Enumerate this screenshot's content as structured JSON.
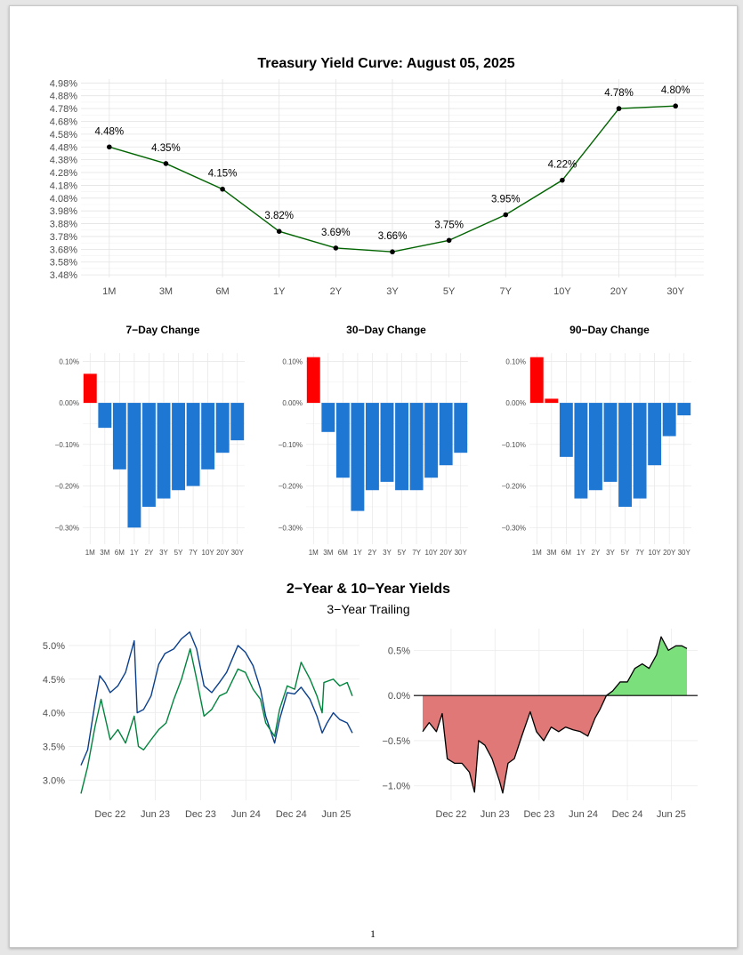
{
  "page": {
    "number": "1"
  },
  "chart_data": [
    {
      "id": "curve",
      "type": "line",
      "title": "Treasury Yield Curve: August 05, 2025",
      "categories": [
        "1M",
        "3M",
        "6M",
        "1Y",
        "2Y",
        "3Y",
        "5Y",
        "7Y",
        "10Y",
        "20Y",
        "30Y"
      ],
      "values": [
        4.48,
        4.35,
        4.15,
        3.82,
        3.69,
        3.66,
        3.75,
        3.95,
        4.22,
        4.78,
        4.8
      ],
      "data_labels": [
        "4.48%",
        "4.35%",
        "4.15%",
        "3.82%",
        "3.69%",
        "3.66%",
        "3.75%",
        "3.95%",
        "4.22%",
        "4.78%",
        "4.80%"
      ],
      "yticks": [
        "3.48%",
        "3.58%",
        "3.68%",
        "3.78%",
        "3.88%",
        "3.98%",
        "4.08%",
        "4.18%",
        "4.28%",
        "4.38%",
        "4.48%",
        "4.58%",
        "4.68%",
        "4.78%",
        "4.88%",
        "4.98%"
      ],
      "ylim": [
        3.46,
        5.01
      ],
      "grid": true,
      "line_color": "#006400",
      "point_color": "#000000"
    },
    {
      "id": "chg7",
      "type": "bar",
      "title": "7−Day Change",
      "categories": [
        "1M",
        "3M",
        "6M",
        "1Y",
        "2Y",
        "3Y",
        "5Y",
        "7Y",
        "10Y",
        "20Y",
        "30Y"
      ],
      "values": [
        0.07,
        -0.06,
        -0.16,
        -0.3,
        -0.25,
        -0.23,
        -0.21,
        -0.2,
        -0.16,
        -0.12,
        -0.09
      ],
      "yticks": [
        "0.10%",
        "0.00%",
        "−0.10%",
        "−0.20%",
        "−0.30%"
      ],
      "ylim": [
        -0.34,
        0.12
      ],
      "pos_color": "#ff0000",
      "neg_color": "#1f77d4"
    },
    {
      "id": "chg30",
      "type": "bar",
      "title": "30−Day Change",
      "categories": [
        "1M",
        "3M",
        "6M",
        "1Y",
        "2Y",
        "3Y",
        "5Y",
        "7Y",
        "10Y",
        "20Y",
        "30Y"
      ],
      "values": [
        0.11,
        -0.07,
        -0.18,
        -0.26,
        -0.21,
        -0.19,
        -0.21,
        -0.21,
        -0.18,
        -0.15,
        -0.12
      ],
      "yticks": [
        "0.10%",
        "0.00%",
        "−0.10%",
        "−0.20%",
        "−0.30%"
      ],
      "ylim": [
        -0.34,
        0.12
      ],
      "pos_color": "#ff0000",
      "neg_color": "#1f77d4"
    },
    {
      "id": "chg90",
      "type": "bar",
      "title": "90−Day Change",
      "categories": [
        "1M",
        "3M",
        "6M",
        "1Y",
        "2Y",
        "3Y",
        "5Y",
        "7Y",
        "10Y",
        "20Y",
        "30Y"
      ],
      "values": [
        0.11,
        0.01,
        -0.13,
        -0.23,
        -0.21,
        -0.19,
        -0.25,
        -0.23,
        -0.15,
        -0.08,
        -0.03
      ],
      "yticks": [
        "0.10%",
        "0.00%",
        "−0.10%",
        "−0.20%",
        "−0.30%"
      ],
      "ylim": [
        -0.34,
        0.12
      ],
      "pos_color": "#ff0000",
      "neg_color": "#1f77d4"
    },
    {
      "id": "yields",
      "type": "line",
      "title": "2−Year & 10−Year Yields",
      "subtitle": "3−Year Trailing",
      "x_range": [
        "2022-08-05",
        "2025-08-05"
      ],
      "xticks": [
        {
          "date": "2022-12-01",
          "label": "Dec 22"
        },
        {
          "date": "2023-06-01",
          "label": "Jun 23"
        },
        {
          "date": "2023-12-01",
          "label": "Dec 23"
        },
        {
          "date": "2024-06-01",
          "label": "Jun 24"
        },
        {
          "date": "2024-12-01",
          "label": "Dec 24"
        },
        {
          "date": "2025-06-01",
          "label": "Jun 25"
        }
      ],
      "yticks": [
        "3.0%",
        "3.5%",
        "4.0%",
        "4.5%",
        "5.0%"
      ],
      "ylim": [
        2.7,
        5.25
      ],
      "series": [
        {
          "color": "#0a3f8c",
          "x": [
            "2022-08-05",
            "2022-09-01",
            "2022-10-01",
            "2022-10-20",
            "2022-11-10",
            "2022-12-01",
            "2023-01-01",
            "2023-02-01",
            "2023-03-08",
            "2023-03-20",
            "2023-04-15",
            "2023-05-15",
            "2023-06-15",
            "2023-07-10",
            "2023-08-15",
            "2023-09-15",
            "2023-10-18",
            "2023-11-15",
            "2023-12-15",
            "2024-01-15",
            "2024-02-15",
            "2024-03-15",
            "2024-04-30",
            "2024-05-30",
            "2024-06-30",
            "2024-07-30",
            "2024-08-20",
            "2024-09-25",
            "2024-10-15",
            "2024-11-15",
            "2024-12-15",
            "2025-01-10",
            "2025-02-15",
            "2025-03-15",
            "2025-04-05",
            "2025-04-25",
            "2025-05-20",
            "2025-06-15",
            "2025-07-15",
            "2025-08-05"
          ],
          "y": [
            3.22,
            3.45,
            4.15,
            4.55,
            4.45,
            4.3,
            4.4,
            4.6,
            5.07,
            4.0,
            4.05,
            4.25,
            4.72,
            4.88,
            4.95,
            5.1,
            5.2,
            4.95,
            4.4,
            4.3,
            4.45,
            4.6,
            5.0,
            4.9,
            4.7,
            4.35,
            3.95,
            3.55,
            3.9,
            4.3,
            4.28,
            4.38,
            4.2,
            3.95,
            3.7,
            3.85,
            4.0,
            3.9,
            3.85,
            3.7
          ]
        },
        {
          "color": "#00843d",
          "x": [
            "2022-08-05",
            "2022-09-01",
            "2022-10-01",
            "2022-10-25",
            "2022-12-01",
            "2023-01-01",
            "2023-02-01",
            "2023-03-08",
            "2023-03-25",
            "2023-04-15",
            "2023-05-15",
            "2023-06-15",
            "2023-07-15",
            "2023-08-15",
            "2023-09-15",
            "2023-10-20",
            "2023-11-15",
            "2023-12-15",
            "2024-01-15",
            "2024-02-15",
            "2024-03-15",
            "2024-04-30",
            "2024-05-30",
            "2024-06-30",
            "2024-07-30",
            "2024-08-20",
            "2024-09-25",
            "2024-10-15",
            "2024-11-15",
            "2024-12-15",
            "2025-01-10",
            "2025-02-15",
            "2025-03-15",
            "2025-04-05",
            "2025-04-12",
            "2025-05-20",
            "2025-06-15",
            "2025-07-15",
            "2025-08-05"
          ],
          "y": [
            2.8,
            3.2,
            3.8,
            4.2,
            3.6,
            3.75,
            3.55,
            3.95,
            3.5,
            3.45,
            3.6,
            3.75,
            3.85,
            4.2,
            4.5,
            4.95,
            4.5,
            3.95,
            4.05,
            4.25,
            4.3,
            4.65,
            4.6,
            4.35,
            4.2,
            3.85,
            3.65,
            4.05,
            4.4,
            4.35,
            4.75,
            4.5,
            4.25,
            4.0,
            4.45,
            4.5,
            4.4,
            4.45,
            4.25
          ]
        }
      ]
    },
    {
      "id": "spread",
      "type": "area",
      "x_range": [
        "2022-08-05",
        "2025-08-05"
      ],
      "xticks": [
        {
          "date": "2022-12-01",
          "label": "Dec 22"
        },
        {
          "date": "2023-06-01",
          "label": "Jun 23"
        },
        {
          "date": "2023-12-01",
          "label": "Dec 23"
        },
        {
          "date": "2024-06-01",
          "label": "Jun 24"
        },
        {
          "date": "2024-12-01",
          "label": "Dec 24"
        },
        {
          "date": "2025-06-01",
          "label": "Jun 25"
        }
      ],
      "yticks": [
        "0.5%",
        "0.0%",
        "−0.5%",
        "−1.0%"
      ],
      "ylim": [
        -1.16,
        0.74
      ],
      "pos_color": "#7be07b",
      "neg_color": "#e07878",
      "line_color": "#000000",
      "series": [
        {
          "x": [
            "2022-08-05",
            "2022-09-01",
            "2022-10-01",
            "2022-10-25",
            "2022-11-15",
            "2022-12-15",
            "2023-01-15",
            "2023-02-15",
            "2023-03-08",
            "2023-03-25",
            "2023-04-20",
            "2023-05-20",
            "2023-06-20",
            "2023-07-03",
            "2023-07-25",
            "2023-08-20",
            "2023-09-20",
            "2023-10-25",
            "2023-11-20",
            "2023-12-20",
            "2024-01-20",
            "2024-02-20",
            "2024-03-20",
            "2024-04-20",
            "2024-05-20",
            "2024-06-20",
            "2024-07-20",
            "2024-08-10",
            "2024-09-05",
            "2024-10-01",
            "2024-11-01",
            "2024-12-01",
            "2025-01-01",
            "2025-02-01",
            "2025-03-01",
            "2025-04-01",
            "2025-04-20",
            "2025-05-20",
            "2025-06-20",
            "2025-07-15",
            "2025-08-05"
          ],
          "y": [
            -0.4,
            -0.3,
            -0.4,
            -0.2,
            -0.7,
            -0.75,
            -0.75,
            -0.85,
            -1.07,
            -0.5,
            -0.55,
            -0.7,
            -0.95,
            -1.08,
            -0.75,
            -0.7,
            -0.45,
            -0.18,
            -0.4,
            -0.5,
            -0.35,
            -0.4,
            -0.35,
            -0.38,
            -0.4,
            -0.45,
            -0.25,
            -0.15,
            0.0,
            0.05,
            0.15,
            0.15,
            0.3,
            0.35,
            0.3,
            0.45,
            0.65,
            0.5,
            0.55,
            0.55,
            0.52
          ]
        }
      ]
    }
  ]
}
